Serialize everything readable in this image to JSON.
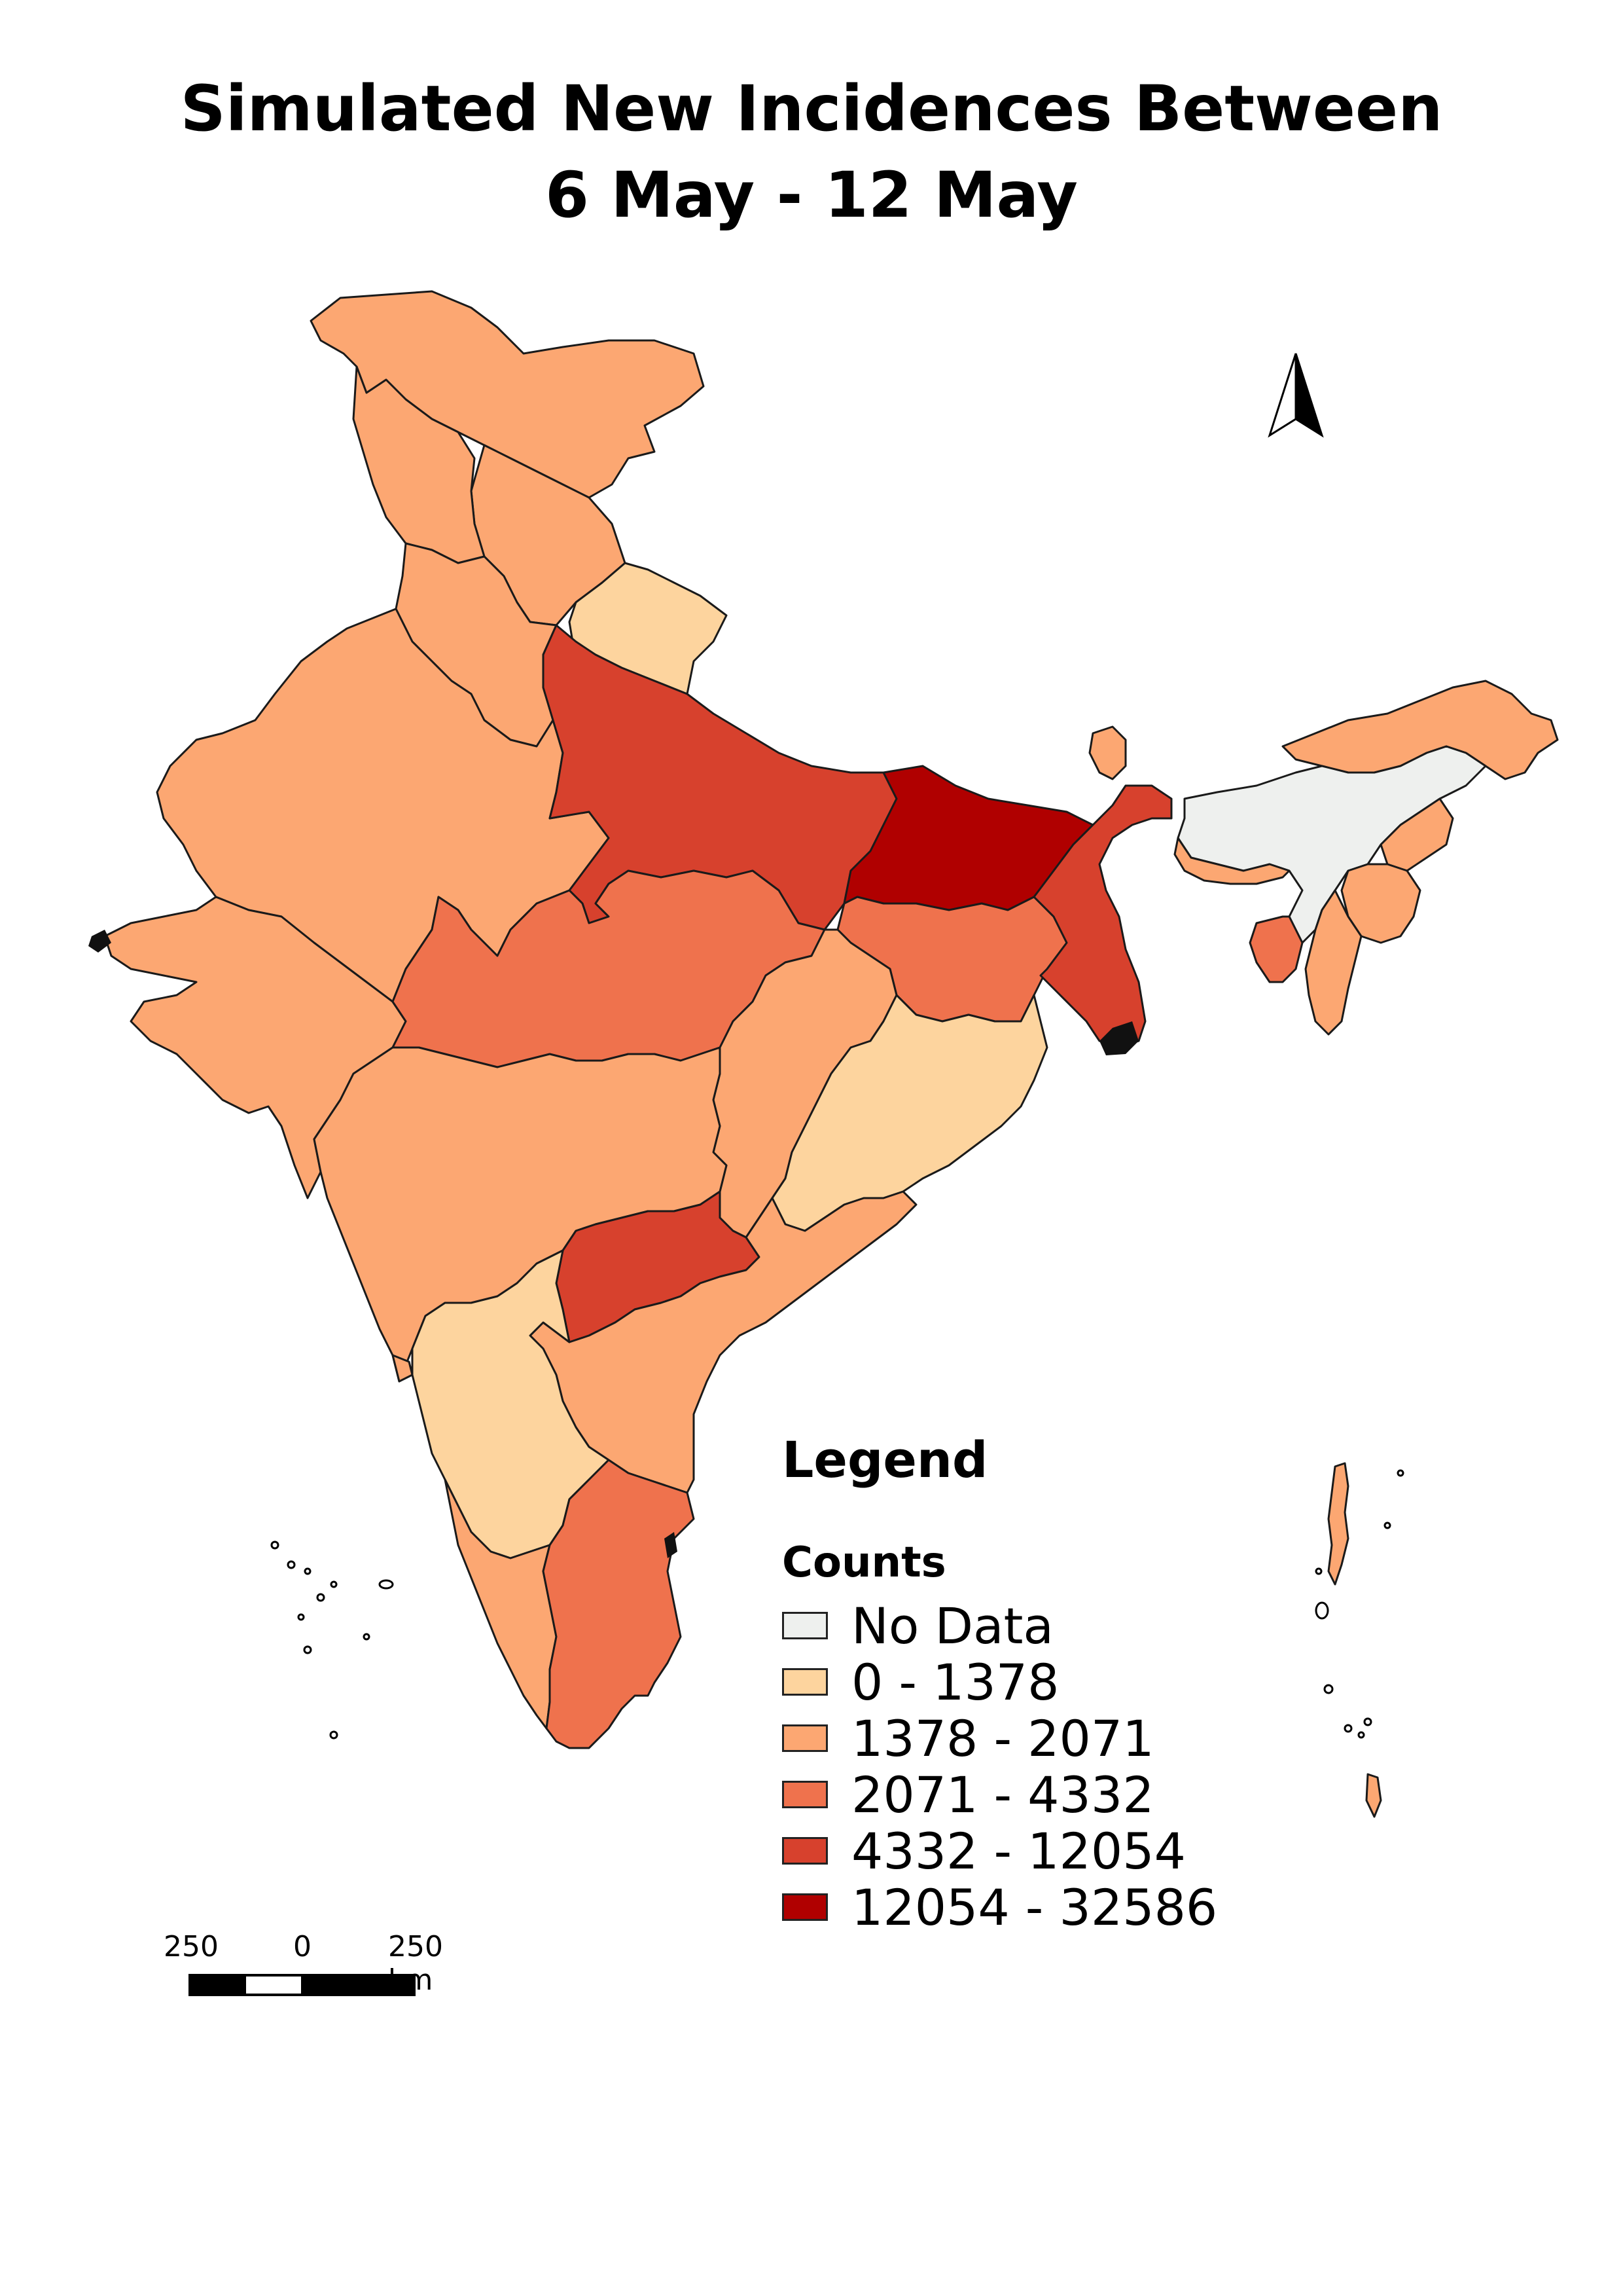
{
  "title_line1": "Simulated New Incidences Between",
  "title_line2": "6 May - 12 May",
  "legend": {
    "title": "Legend",
    "subtitle": "Counts",
    "items": [
      {
        "label": "No Data",
        "color": "#eef0ee"
      },
      {
        "label": " 0 - 1378",
        "color": "#fdd49e"
      },
      {
        "label": " 1378 - 2071",
        "color": "#fca772"
      },
      {
        "label": " 2071 - 4332",
        "color": "#ef724d"
      },
      {
        "label": " 4332 - 12054",
        "color": "#d7412d"
      },
      {
        "label": " 12054 - 32586",
        "color": "#b00000"
      }
    ]
  },
  "scale_bar": {
    "left_label": "250",
    "mid_label": "0",
    "right_label": "250 km"
  },
  "north_arrow_icon": "north-arrow-icon",
  "regions": [
    {
      "name": "Jammu and Kashmir",
      "class": "1378 - 2071"
    },
    {
      "name": "Himachal Pradesh",
      "class": "1378 - 2071"
    },
    {
      "name": "Punjab",
      "class": "1378 - 2071"
    },
    {
      "name": "Haryana",
      "class": "1378 - 2071"
    },
    {
      "name": "Uttarakhand",
      "class": "0 - 1378"
    },
    {
      "name": "Rajasthan",
      "class": "1378 - 2071"
    },
    {
      "name": "Uttar Pradesh",
      "class": "4332 - 12054"
    },
    {
      "name": "Bihar",
      "class": "12054 - 32586"
    },
    {
      "name": "Gujarat",
      "class": "1378 - 2071"
    },
    {
      "name": "Madhya Pradesh",
      "class": "2071 - 4332"
    },
    {
      "name": "Jharkhand",
      "class": "2071 - 4332"
    },
    {
      "name": "West Bengal",
      "class": "4332 - 12054"
    },
    {
      "name": "Sikkim",
      "class": "1378 - 2071"
    },
    {
      "name": "Assam",
      "class": "No Data"
    },
    {
      "name": "Arunachal Pradesh",
      "class": "1378 - 2071"
    },
    {
      "name": "Meghalaya",
      "class": "1378 - 2071"
    },
    {
      "name": "Nagaland",
      "class": "1378 - 2071"
    },
    {
      "name": "Manipur",
      "class": "1378 - 2071"
    },
    {
      "name": "Mizoram",
      "class": "1378 - 2071"
    },
    {
      "name": "Tripura",
      "class": "2071 - 4332"
    },
    {
      "name": "Chhattisgarh",
      "class": "1378 - 2071"
    },
    {
      "name": "Odisha",
      "class": "0 - 1378"
    },
    {
      "name": "Maharashtra",
      "class": "1378 - 2071"
    },
    {
      "name": "Telangana",
      "class": "4332 - 12054"
    },
    {
      "name": "Andhra Pradesh",
      "class": "1378 - 2071"
    },
    {
      "name": "Karnataka",
      "class": "0 - 1378"
    },
    {
      "name": "Goa",
      "class": "1378 - 2071"
    },
    {
      "name": "Kerala",
      "class": "1378 - 2071"
    },
    {
      "name": "Tamil Nadu",
      "class": "2071 - 4332"
    },
    {
      "name": "Andaman and Nicobar Islands",
      "class": "1378 - 2071"
    }
  ]
}
